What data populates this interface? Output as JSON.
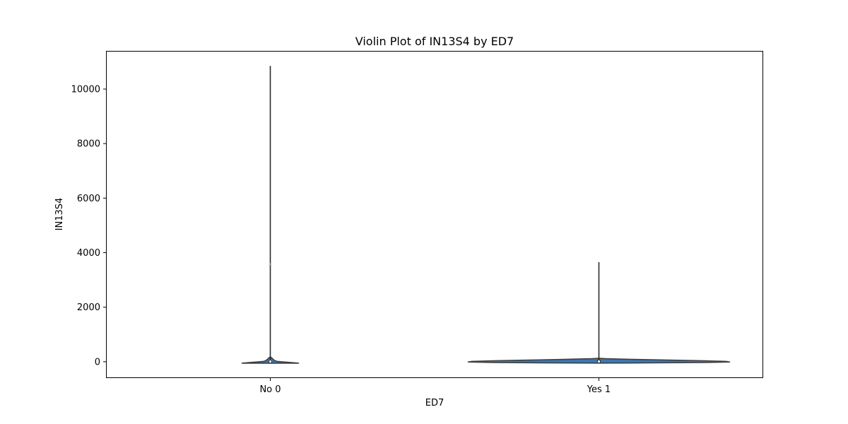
{
  "chart_data": {
    "type": "violin",
    "title": "Violin Plot of IN13S4 by ED7",
    "xlabel": "ED7",
    "ylabel": "IN13S4",
    "categories": [
      "No 0",
      "Yes 1"
    ],
    "ylim": [
      -600,
      11400
    ],
    "yticks": [
      0,
      2000,
      4000,
      6000,
      8000,
      10000
    ],
    "grid": false,
    "violins": [
      {
        "category": "No 0",
        "min": -50,
        "max": 10850,
        "median": 5,
        "q1": -10,
        "q3": 20,
        "outlier_marker": 3580,
        "profile": [
          {
            "y": -55,
            "half_width": 40
          },
          {
            "y": -45,
            "half_width": 36
          },
          {
            "y": -25,
            "half_width": 27
          },
          {
            "y": -5,
            "half_width": 17
          },
          {
            "y": 15,
            "half_width": 9
          },
          {
            "y": 45,
            "half_width": 6
          },
          {
            "y": 90,
            "half_width": 4
          },
          {
            "y": 140,
            "half_width": 2
          },
          {
            "y": 180,
            "half_width": 0
          }
        ]
      },
      {
        "category": "Yes 1",
        "min": -40,
        "max": 3650,
        "median": 10,
        "q1": -10,
        "q3": 40,
        "profile": [
          {
            "y": -50,
            "half_width": 0
          },
          {
            "y": -45,
            "half_width": 60
          },
          {
            "y": -30,
            "half_width": 150
          },
          {
            "y": -10,
            "half_width": 185
          },
          {
            "y": 10,
            "half_width": 180
          },
          {
            "y": 35,
            "half_width": 150
          },
          {
            "y": 60,
            "half_width": 100
          },
          {
            "y": 85,
            "half_width": 50
          },
          {
            "y": 110,
            "half_width": 10
          },
          {
            "y": 125,
            "half_width": 0
          }
        ]
      }
    ],
    "colors": {
      "fill": "#3a78b5",
      "edge": "#3f3f3f",
      "whisker": "#2b2b2b",
      "box": "#2b2b2b",
      "median": "#ffffff"
    }
  }
}
